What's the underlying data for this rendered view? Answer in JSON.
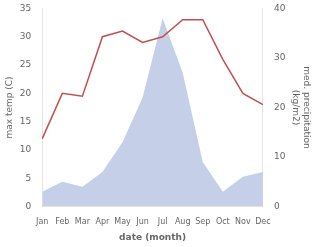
{
  "chart_data": {
    "type": "line",
    "xlabel": "date (month)",
    "ylabel": "max temp (C)",
    "y2label": "med. precipitation\n(kg/m2)",
    "categories": [
      "Jan",
      "Feb",
      "Mar",
      "Apr",
      "May",
      "Jun",
      "Jul",
      "Aug",
      "Sep",
      "Oct",
      "Nov",
      "Dec"
    ],
    "series": [
      {
        "type": "area",
        "axis": "y2",
        "color": "#c5cfe8",
        "values": [
          3,
          5,
          4,
          7,
          13,
          22,
          38,
          27,
          9,
          3,
          6,
          7
        ]
      },
      {
        "type": "line",
        "color": "#c0504d",
        "values": [
          12,
          20,
          19.5,
          30,
          31,
          29,
          30,
          33,
          33,
          26,
          20,
          18
        ]
      }
    ],
    "ylim": [
      0,
      35
    ],
    "yticks": [
      0,
      5,
      10,
      15,
      20,
      25,
      30,
      35
    ],
    "y2lim": [
      0,
      40
    ],
    "y2ticks": [
      0,
      10,
      20,
      30,
      40
    ],
    "grid": false
  }
}
